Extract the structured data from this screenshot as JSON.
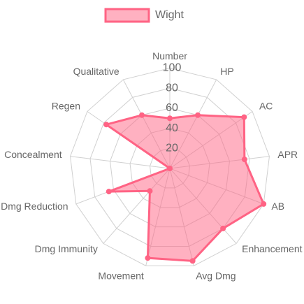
{
  "chart_data": {
    "type": "radar",
    "categories": [
      "Number",
      "HP",
      "AC",
      "APR",
      "AB",
      "Enhancement",
      "Avg Dmg",
      "Movement",
      "Dmg Immunity",
      "Dmg Reduction",
      "Concealment",
      "Regen",
      "Qualitative"
    ],
    "series": [
      {
        "name": "Wight",
        "color": "#ff6384",
        "values": [
          50,
          60,
          90,
          75,
          100,
          80,
          95,
          92,
          30,
          65,
          0,
          77,
          60
        ]
      }
    ],
    "ylim": [
      0,
      100
    ],
    "yticks": [
      20,
      40,
      60,
      80,
      100
    ],
    "grid": true,
    "legend": "top"
  }
}
